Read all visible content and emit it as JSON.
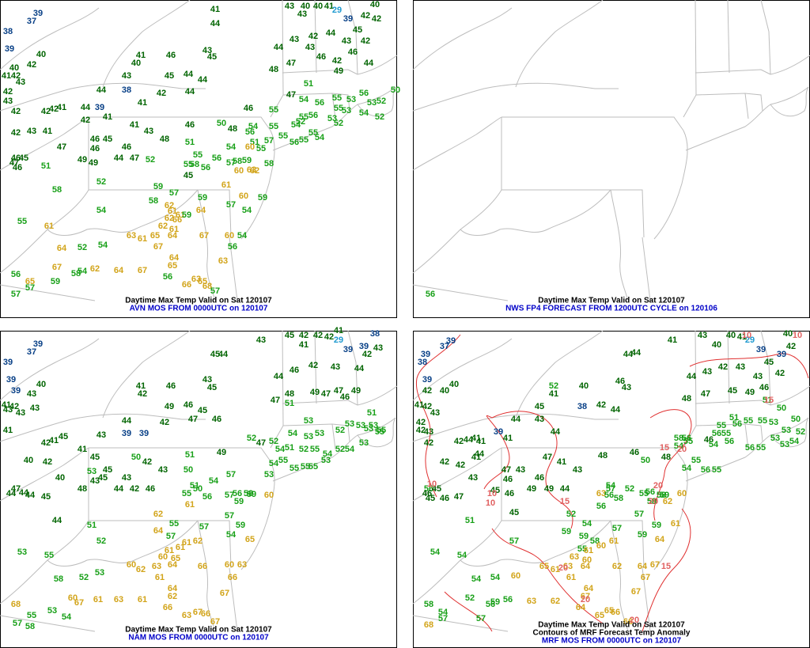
{
  "panels": [
    {
      "caption": "Daytime Max Temp Valid on Sat 120107",
      "subcaption": "AVN MOS FROM 0000UTC on 120107",
      "values": [
        39,
        37,
        38,
        39,
        40,
        42,
        40,
        41,
        42,
        43,
        42,
        43,
        41,
        43,
        40,
        40,
        41,
        29,
        42,
        40,
        39,
        42,
        43,
        44,
        43,
        42,
        44,
        45,
        42,
        43,
        43,
        44,
        46,
        42,
        46,
        49,
        44,
        47,
        48,
        41,
        40,
        46,
        43,
        45,
        43,
        45,
        44,
        44,
        44,
        38,
        42,
        44,
        41,
        39,
        44,
        41,
        42,
        42,
        42,
        42,
        41,
        46,
        55,
        47,
        51,
        54,
        56,
        55,
        53,
        56,
        53,
        52,
        50,
        54,
        52,
        55,
        53,
        55,
        56,
        52,
        53,
        52,
        50,
        48,
        46,
        41,
        43,
        48,
        54,
        56,
        51,
        55,
        54,
        55,
        55,
        54,
        56,
        55,
        57,
        55,
        60,
        54,
        51,
        46,
        45,
        41,
        43,
        42,
        47,
        46,
        46,
        49,
        49,
        44,
        47,
        52,
        55,
        56,
        57,
        58,
        59,
        60,
        63,
        62,
        58,
        58,
        55,
        56,
        45,
        46,
        45,
        47,
        46,
        51,
        52,
        58,
        59,
        57,
        59,
        61,
        60,
        59,
        58,
        62,
        61,
        61,
        59,
        64,
        57,
        54,
        54,
        55,
        61,
        62,
        66,
        62,
        61,
        63,
        61,
        65,
        64,
        67,
        60,
        54,
        54,
        52,
        64,
        67,
        64,
        56,
        67,
        65,
        63,
        62,
        64,
        67,
        56,
        59,
        58,
        54,
        56,
        65,
        66,
        63,
        65,
        68,
        57,
        57,
        57
      ]
    },
    {
      "caption": "Daytime Max Temp Valid on Sat 120107",
      "subcaption": "NWS FP4 FORECAST FROM 1200UTC CYCLE on 120106",
      "values": [
        56
      ]
    },
    {
      "caption": "Daytime Max Temp Valid on Sat 120107",
      "subcaption": "NAM MOS FROM 0000UTC on 120107",
      "values": [
        39,
        37,
        39,
        39,
        40,
        43,
        39,
        41,
        42,
        43,
        43,
        41,
        43,
        42,
        41,
        45,
        43,
        44,
        39,
        39,
        42,
        49,
        46,
        45,
        47,
        46,
        41,
        42,
        46,
        43,
        45,
        45,
        44,
        43,
        45,
        41,
        42,
        42,
        42,
        29,
        41,
        38,
        39,
        43,
        39,
        42,
        44,
        46,
        42,
        43,
        44,
        48,
        47,
        51,
        49,
        47,
        47,
        49,
        46,
        51,
        53,
        55,
        53,
        53,
        53,
        52,
        53,
        53,
        53,
        54,
        52,
        55,
        53,
        54,
        52,
        54,
        53,
        55,
        52,
        47,
        52,
        54,
        51,
        55,
        55,
        55,
        54,
        55,
        53,
        57,
        49,
        51,
        50,
        51,
        54,
        55,
        56,
        57,
        56,
        58,
        59,
        59,
        60,
        61,
        62,
        55,
        57,
        57,
        59,
        64,
        57,
        61,
        62,
        54,
        65,
        61,
        61,
        60,
        65,
        60,
        62,
        63,
        64,
        66,
        60,
        63,
        61,
        64,
        66,
        62,
        67,
        61,
        63,
        61,
        66,
        67,
        60,
        63,
        67,
        66,
        67,
        68,
        55,
        53,
        54,
        57,
        58,
        53,
        45,
        43,
        45,
        43,
        42,
        44,
        46,
        48,
        43,
        50,
        42,
        45,
        41,
        42,
        40,
        40,
        47,
        44,
        44,
        44,
        45,
        44,
        51,
        52,
        53,
        55,
        58,
        52,
        53,
        50
      ]
    },
    {
      "caption": "Daytime Max Temp Valid on Sat 120107",
      "caption2": "Contours of MRF Forecast Temp Anomaly",
      "subcaption": "MRF MOS FROM 0000UTC on 120107",
      "values": [
        39,
        37,
        39,
        38,
        39,
        40,
        40,
        42,
        41,
        42,
        43,
        42,
        43,
        42,
        41,
        44,
        44,
        43,
        40,
        40,
        41,
        29,
        39,
        40,
        42,
        39,
        42,
        43,
        43,
        45,
        42,
        43,
        44,
        47,
        48,
        45,
        49,
        46,
        51,
        50,
        50,
        53,
        53,
        52,
        55,
        55,
        51,
        55,
        56,
        56,
        55,
        56,
        46,
        54,
        56,
        56,
        55,
        53,
        53,
        54,
        52,
        41,
        40,
        46,
        43,
        45,
        43,
        38,
        42,
        44,
        44,
        44,
        41,
        39,
        41,
        42,
        44,
        41,
        42,
        42,
        41,
        44,
        42,
        43,
        47,
        43,
        46,
        46,
        45,
        46,
        49,
        49,
        44,
        47,
        41,
        43,
        48,
        46,
        50,
        48,
        54,
        58,
        55,
        55,
        54,
        56,
        55,
        54,
        52,
        55,
        56,
        58,
        58,
        59,
        60,
        62,
        63,
        56,
        58,
        56,
        56,
        45,
        46,
        45,
        47,
        46,
        45,
        51,
        52,
        54,
        57,
        57,
        59,
        61,
        59,
        59,
        58,
        60,
        61,
        59,
        64,
        57,
        54,
        54,
        55,
        61,
        63,
        60,
        65,
        61,
        63,
        64,
        62,
        64,
        67,
        61,
        64,
        67,
        60,
        54,
        54,
        52,
        56,
        59,
        58,
        54,
        56,
        63,
        62,
        64,
        67,
        67,
        65,
        65,
        66,
        66,
        68,
        57,
        57,
        57
      ],
      "contour_labels": [
        10,
        10,
        15,
        15,
        20,
        10,
        10,
        15,
        10,
        20,
        20,
        15,
        20,
        20,
        20
      ]
    }
  ]
}
